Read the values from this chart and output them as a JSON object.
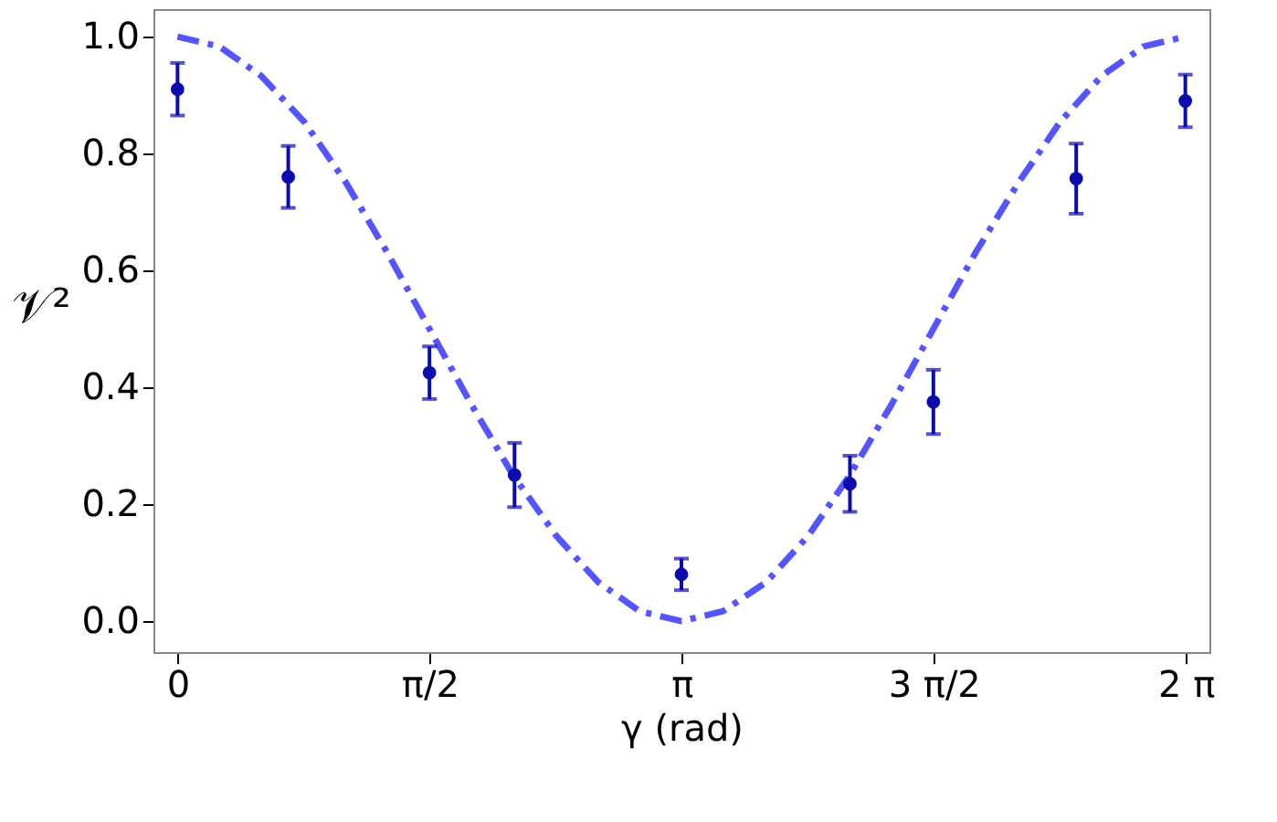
{
  "chart_data": {
    "type": "scatter",
    "xlabel": "γ (rad)",
    "ylabel": "𝒱²",
    "xlim": [
      -0.15,
      6.43
    ],
    "ylim": [
      -0.053,
      1.047
    ],
    "xticks": [
      {
        "value": 0,
        "label": "0"
      },
      {
        "value": 1.5708,
        "label": "π/2"
      },
      {
        "value": 3.1416,
        "label": "π"
      },
      {
        "value": 4.7124,
        "label": "3 π/2"
      },
      {
        "value": 6.2832,
        "label": "2 π"
      }
    ],
    "yticks": [
      {
        "value": 0,
        "label": "0.0"
      },
      0.2,
      0.4,
      0.6,
      0.8,
      {
        "value": 1,
        "label": "1.0"
      }
    ],
    "grid": false,
    "series": [
      {
        "type": "line",
        "color": "#5555ff",
        "line_style": "dashed",
        "x": [
          0,
          0.26,
          0.52,
          0.79,
          1.05,
          1.31,
          1.57,
          1.83,
          2.09,
          2.36,
          2.62,
          2.88,
          3.14,
          3.4,
          3.67,
          3.93,
          4.19,
          4.45,
          4.71,
          4.97,
          5.24,
          5.5,
          5.76,
          6.02,
          6.28
        ],
        "values": [
          1,
          0.983,
          0.933,
          0.854,
          0.75,
          0.629,
          0.5,
          0.371,
          0.25,
          0.146,
          0.067,
          0.017,
          0,
          0.017,
          0.067,
          0.146,
          0.25,
          0.371,
          0.5,
          0.629,
          0.75,
          0.854,
          0.933,
          0.983,
          1
        ]
      },
      {
        "color": "#0b0bae",
        "marker": "circle",
        "x": [
          0,
          0.69,
          1.57,
          2.1,
          3.14,
          4.19,
          4.71,
          5.6,
          6.28
        ],
        "values": [
          0.91,
          0.76,
          0.425,
          0.25,
          0.08,
          0.235,
          0.375,
          0.757,
          0.89
        ],
        "errors": [
          0.045,
          0.053,
          0.045,
          0.055,
          0.027,
          0.048,
          0.055,
          0.06,
          0.045
        ]
      }
    ]
  }
}
